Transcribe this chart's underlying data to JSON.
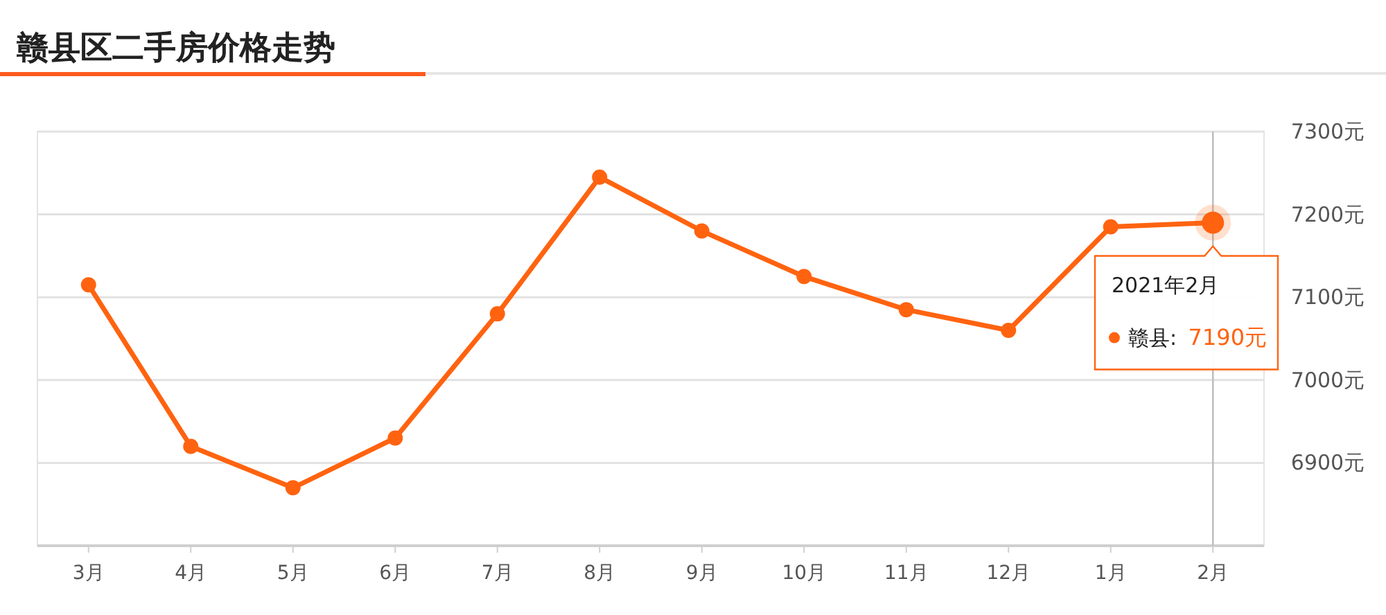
{
  "chart_data": {
    "type": "line",
    "title": "赣县区二手房价格走势",
    "categories": [
      "3月",
      "4月",
      "5月",
      "6月",
      "7月",
      "8月",
      "9月",
      "10月",
      "11月",
      "12月",
      "1月",
      "2月"
    ],
    "series": [
      {
        "color": "#ff6310",
        "values": [
          7115,
          6920,
          6870,
          6930,
          7080,
          7245,
          7180,
          7125,
          7085,
          7060,
          7185,
          7190
        ]
      }
    ],
    "ylim": [
      6800,
      7300
    ],
    "yticks": [
      {
        "value": 6900,
        "label": "6900元"
      },
      {
        "value": 7000,
        "label": "7000元"
      },
      {
        "value": 7100,
        "label": "7100元"
      },
      {
        "value": 7200,
        "label": "7200元"
      },
      {
        "value": 7300,
        "label": "7300元"
      }
    ],
    "grid": "y",
    "marker": "circle",
    "line_style": "solid",
    "ref_lines": [
      {
        "axis": "x",
        "value": "2月",
        "color": "#bbbbbb"
      }
    ],
    "annotations": [
      {
        "text": "2021年2月",
        "x": "2月",
        "y": 7190
      },
      "赣县:",
      "7190元"
    ]
  }
}
